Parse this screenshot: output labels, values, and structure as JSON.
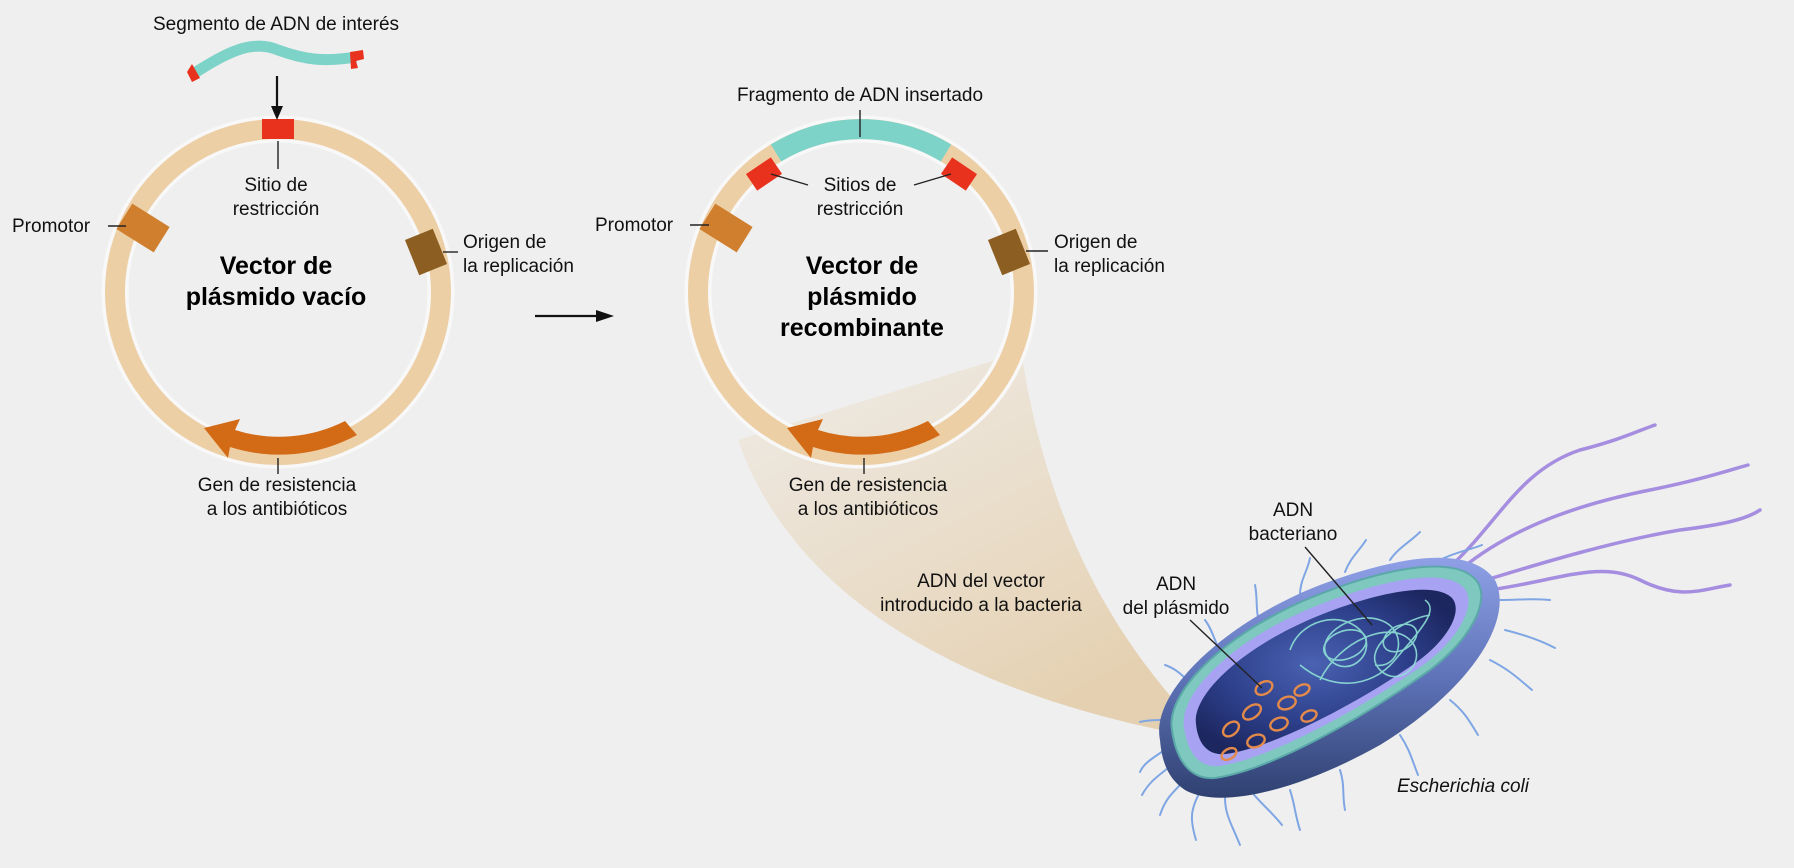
{
  "labels": {
    "segment": "Segmento de ADN de interés",
    "restriction_site": [
      "Sitio de",
      "restricción"
    ],
    "promoter": "Promotor",
    "origin": [
      "Origen de",
      "la replicación"
    ],
    "resistance": [
      "Gen de resistencia",
      "a los antibióticos"
    ],
    "inserted_fragment": "Fragmento de ADN insertado",
    "restriction_sites": [
      "Sitios de",
      "restricción"
    ],
    "vector_intro": [
      "ADN del vector",
      "introducido a la bacteria"
    ],
    "plasmid_dna": [
      "ADN",
      "del plásmido"
    ],
    "bacterial_dna": [
      "ADN",
      "bacteriano"
    ],
    "organism": "Escherichia coli"
  },
  "titles": {
    "empty_vector": [
      "Vector de",
      "plásmido vacío"
    ],
    "recombinant_vector": [
      "Vector de",
      "plásmido",
      "recombinante"
    ]
  },
  "colors": {
    "background": "#efefef",
    "plasmid_ring": "#edcfa6",
    "restriction_red": "#e8321e",
    "insert_teal": "#7dd3c8",
    "promoter_orange": "#cf7f2e",
    "origin_brown": "#8c5e22",
    "resistance_orange": "#d36a16",
    "cell_membrane": "#9aa0ef",
    "cytoplasm": "#2c3a7e",
    "flagella": "#a58ee0"
  }
}
